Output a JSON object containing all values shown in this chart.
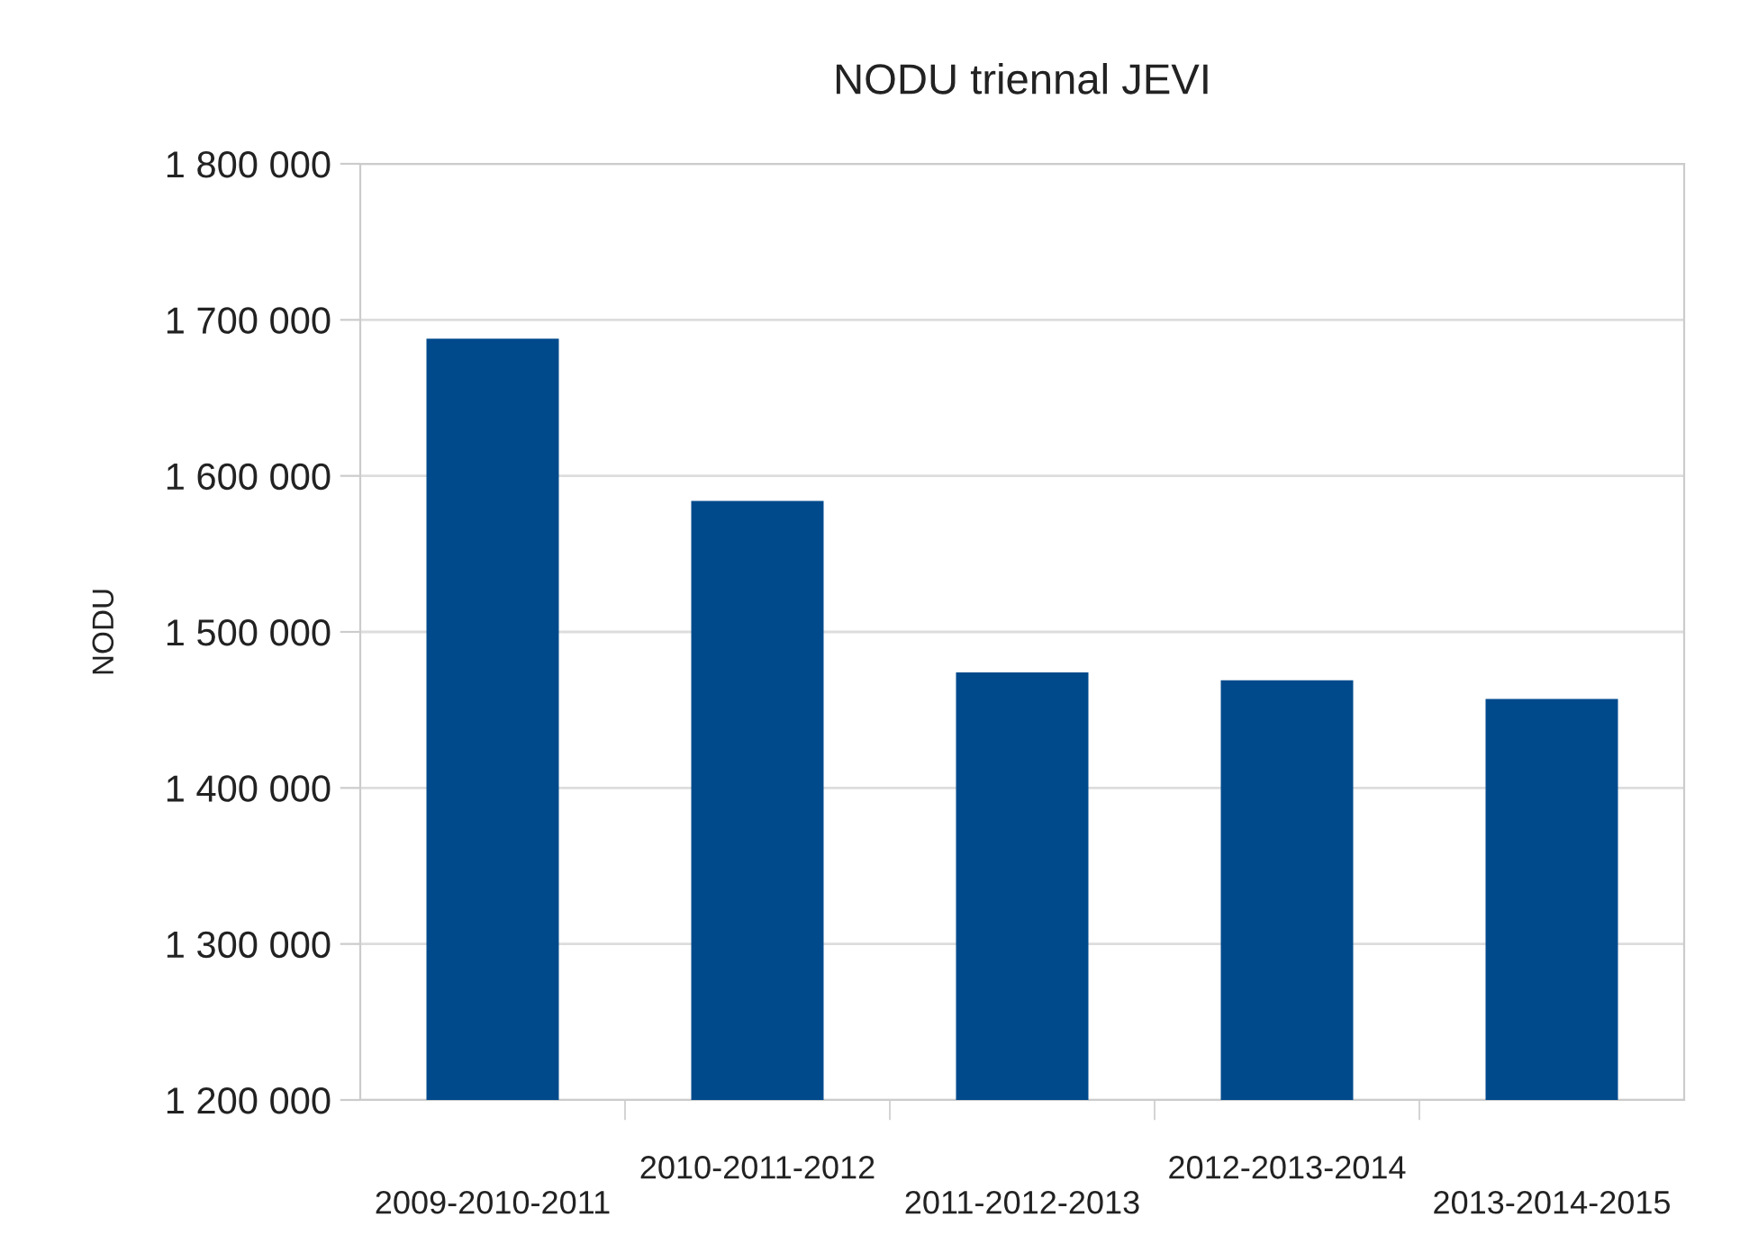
{
  "chart_data": {
    "type": "bar",
    "title": "NODU triennal JEVI",
    "ylabel": "NODU",
    "categories": [
      "2009-2010-2011",
      "2010-2011-2012",
      "2011-2012-2013",
      "2012-2013-2014",
      "2013-2014-2015"
    ],
    "values": [
      1688000,
      1584000,
      1474000,
      1469000,
      1457000
    ],
    "color": "#004a8c",
    "ylim": [
      1200000,
      1800000
    ],
    "yticks": [
      {
        "value": 1200000,
        "label": "1 200 000"
      },
      {
        "value": 1300000,
        "label": "1 300 000"
      },
      {
        "value": 1400000,
        "label": "1 400 000"
      },
      {
        "value": 1500000,
        "label": "1 500 000"
      },
      {
        "value": 1600000,
        "label": "1 600 000"
      },
      {
        "value": 1700000,
        "label": "1 700 000"
      },
      {
        "value": 1800000,
        "label": "1 800 000"
      }
    ],
    "grid": "y",
    "legend": false
  }
}
